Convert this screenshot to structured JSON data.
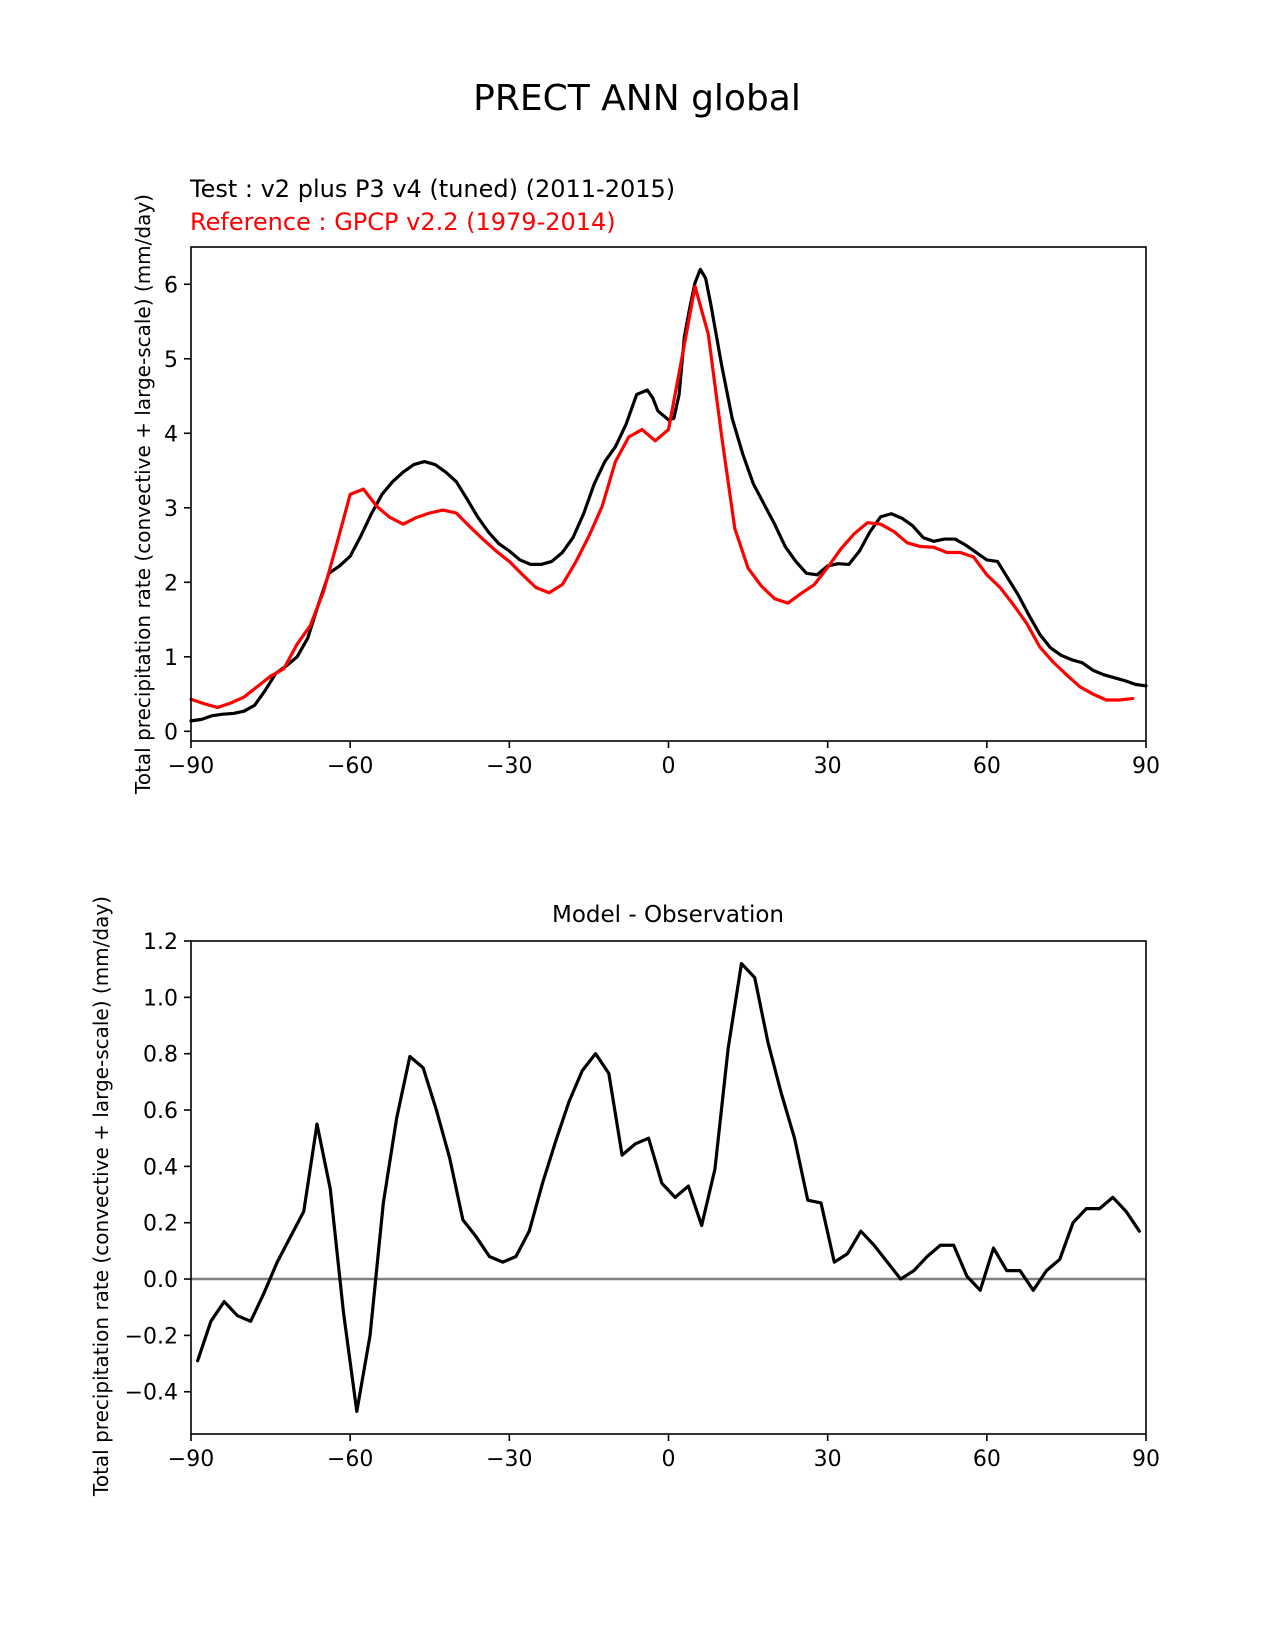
{
  "figure": {
    "title": "PRECT ANN global"
  },
  "chart_data": [
    {
      "type": "line",
      "test_label": "Test : v2 plus P3 v4 (tuned) (2011-2015)",
      "reference_label": "Reference : GPCP v2.2 (1979-2014)",
      "xlabel": "",
      "ylabel": "Total precipitation rate (convective + large-scale) (mm/day)",
      "xlim": [
        -90,
        90
      ],
      "ylim": [
        -0.13,
        6.5
      ],
      "xticks": [
        -90,
        -60,
        -30,
        0,
        30,
        60,
        90
      ],
      "xtick_labels": [
        "−90",
        "−60",
        "−30",
        "0",
        "30",
        "60",
        "90"
      ],
      "yticks": [
        0,
        1,
        2,
        3,
        4,
        5,
        6
      ],
      "ytick_labels": [
        "0",
        "1",
        "2",
        "3",
        "4",
        "5",
        "6"
      ],
      "grid": false,
      "series": [
        {
          "color": "#000000",
          "points": [
            [
              -90,
              0.14
            ],
            [
              -88,
              0.16
            ],
            [
              -86,
              0.21
            ],
            [
              -84,
              0.23
            ],
            [
              -82,
              0.24
            ],
            [
              -80,
              0.27
            ],
            [
              -78,
              0.35
            ],
            [
              -76,
              0.55
            ],
            [
              -74,
              0.78
            ],
            [
              -72,
              0.88
            ],
            [
              -70,
              1.0
            ],
            [
              -68,
              1.25
            ],
            [
              -66,
              1.7
            ],
            [
              -64,
              2.12
            ],
            [
              -62,
              2.22
            ],
            [
              -60,
              2.35
            ],
            [
              -58,
              2.62
            ],
            [
              -56,
              2.92
            ],
            [
              -54,
              3.18
            ],
            [
              -52,
              3.35
            ],
            [
              -50,
              3.48
            ],
            [
              -48,
              3.58
            ],
            [
              -46,
              3.62
            ],
            [
              -44,
              3.58
            ],
            [
              -42,
              3.48
            ],
            [
              -40,
              3.35
            ],
            [
              -38,
              3.12
            ],
            [
              -36,
              2.88
            ],
            [
              -34,
              2.68
            ],
            [
              -32,
              2.52
            ],
            [
              -30,
              2.42
            ],
            [
              -28,
              2.3
            ],
            [
              -26,
              2.24
            ],
            [
              -24,
              2.24
            ],
            [
              -22,
              2.28
            ],
            [
              -20,
              2.4
            ],
            [
              -18,
              2.6
            ],
            [
              -16,
              2.92
            ],
            [
              -14,
              3.32
            ],
            [
              -12,
              3.62
            ],
            [
              -10,
              3.82
            ],
            [
              -8,
              4.12
            ],
            [
              -6,
              4.52
            ],
            [
              -4,
              4.58
            ],
            [
              -3,
              4.48
            ],
            [
              -2,
              4.3
            ],
            [
              0,
              4.18
            ],
            [
              1,
              4.2
            ],
            [
              2,
              4.52
            ],
            [
              3,
              5.3
            ],
            [
              4,
              5.68
            ],
            [
              5,
              6.02
            ],
            [
              6,
              6.2
            ],
            [
              7,
              6.08
            ],
            [
              8,
              5.72
            ],
            [
              10,
              4.92
            ],
            [
              12,
              4.2
            ],
            [
              14,
              3.72
            ],
            [
              16,
              3.32
            ],
            [
              18,
              3.05
            ],
            [
              20,
              2.78
            ],
            [
              22,
              2.48
            ],
            [
              24,
              2.28
            ],
            [
              26,
              2.12
            ],
            [
              28,
              2.1
            ],
            [
              30,
              2.22
            ],
            [
              32,
              2.25
            ],
            [
              34,
              2.24
            ],
            [
              36,
              2.42
            ],
            [
              38,
              2.68
            ],
            [
              40,
              2.88
            ],
            [
              42,
              2.92
            ],
            [
              44,
              2.86
            ],
            [
              46,
              2.76
            ],
            [
              48,
              2.6
            ],
            [
              50,
              2.55
            ],
            [
              52,
              2.58
            ],
            [
              54,
              2.58
            ],
            [
              56,
              2.5
            ],
            [
              58,
              2.4
            ],
            [
              60,
              2.3
            ],
            [
              62,
              2.28
            ],
            [
              64,
              2.05
            ],
            [
              66,
              1.82
            ],
            [
              68,
              1.55
            ],
            [
              70,
              1.3
            ],
            [
              72,
              1.12
            ],
            [
              74,
              1.02
            ],
            [
              76,
              0.96
            ],
            [
              78,
              0.92
            ],
            [
              80,
              0.82
            ],
            [
              82,
              0.76
            ],
            [
              84,
              0.72
            ],
            [
              86,
              0.68
            ],
            [
              88,
              0.63
            ],
            [
              90,
              0.61
            ]
          ]
        },
        {
          "color": "#ff0000",
          "points": [
            [
              -90,
              0.43
            ],
            [
              -87.5,
              0.37
            ],
            [
              -85,
              0.32
            ],
            [
              -82.5,
              0.38
            ],
            [
              -80,
              0.46
            ],
            [
              -77.5,
              0.6
            ],
            [
              -75,
              0.74
            ],
            [
              -72.5,
              0.84
            ],
            [
              -70,
              1.17
            ],
            [
              -67.5,
              1.42
            ],
            [
              -65,
              1.88
            ],
            [
              -62.5,
              2.52
            ],
            [
              -60,
              3.18
            ],
            [
              -57.5,
              3.25
            ],
            [
              -55,
              3.02
            ],
            [
              -52.5,
              2.87
            ],
            [
              -50,
              2.78
            ],
            [
              -47.5,
              2.87
            ],
            [
              -45,
              2.93
            ],
            [
              -42.5,
              2.97
            ],
            [
              -40,
              2.93
            ],
            [
              -37.5,
              2.75
            ],
            [
              -35,
              2.58
            ],
            [
              -32.5,
              2.42
            ],
            [
              -30,
              2.28
            ],
            [
              -27.5,
              2.1
            ],
            [
              -25,
              1.93
            ],
            [
              -22.5,
              1.86
            ],
            [
              -20,
              1.97
            ],
            [
              -17.5,
              2.27
            ],
            [
              -15,
              2.62
            ],
            [
              -12.5,
              3.02
            ],
            [
              -10,
              3.62
            ],
            [
              -7.5,
              3.95
            ],
            [
              -5,
              4.05
            ],
            [
              -2.5,
              3.9
            ],
            [
              0,
              4.05
            ],
            [
              2.5,
              5.0
            ],
            [
              5,
              5.97
            ],
            [
              7.5,
              5.33
            ],
            [
              10,
              3.97
            ],
            [
              12.5,
              2.72
            ],
            [
              15,
              2.19
            ],
            [
              17.5,
              1.95
            ],
            [
              20,
              1.78
            ],
            [
              22.5,
              1.72
            ],
            [
              25,
              1.85
            ],
            [
              27.5,
              1.97
            ],
            [
              30,
              2.2
            ],
            [
              32.5,
              2.45
            ],
            [
              35,
              2.65
            ],
            [
              37.5,
              2.8
            ],
            [
              40,
              2.78
            ],
            [
              42.5,
              2.68
            ],
            [
              45,
              2.53
            ],
            [
              47.5,
              2.48
            ],
            [
              50,
              2.47
            ],
            [
              52.5,
              2.4
            ],
            [
              55,
              2.4
            ],
            [
              57.5,
              2.34
            ],
            [
              60,
              2.1
            ],
            [
              62.5,
              1.93
            ],
            [
              65,
              1.7
            ],
            [
              67.5,
              1.45
            ],
            [
              70,
              1.13
            ],
            [
              72.5,
              0.93
            ],
            [
              75,
              0.76
            ],
            [
              77.5,
              0.6
            ],
            [
              80,
              0.5
            ],
            [
              82.5,
              0.42
            ],
            [
              85,
              0.42
            ],
            [
              87.5,
              0.44
            ]
          ]
        }
      ]
    },
    {
      "type": "line",
      "title": "Model - Observation",
      "xlabel": "",
      "ylabel": "Total precipitation rate (convective + large-scale) (mm/day)",
      "xlim": [
        -90,
        90
      ],
      "ylim": [
        -0.55,
        1.2
      ],
      "xticks": [
        -90,
        -60,
        -30,
        0,
        30,
        60,
        90
      ],
      "xtick_labels": [
        "−90",
        "−60",
        "−30",
        "0",
        "30",
        "60",
        "90"
      ],
      "yticks": [
        -0.4,
        -0.2,
        0.0,
        0.2,
        0.4,
        0.6,
        0.8,
        1.0,
        1.2
      ],
      "ytick_labels": [
        "−0.4",
        "−0.2",
        "0.0",
        "0.2",
        "0.4",
        "0.6",
        "0.8",
        "1.0",
        "1.2"
      ],
      "zero_line_color": "#808080",
      "grid": false,
      "series": [
        {
          "color": "#000000",
          "points": [
            [
              -88.75,
              -0.29
            ],
            [
              -86.25,
              -0.15
            ],
            [
              -83.75,
              -0.08
            ],
            [
              -81.25,
              -0.13
            ],
            [
              -78.75,
              -0.15
            ],
            [
              -76.25,
              -0.05
            ],
            [
              -73.75,
              0.06
            ],
            [
              -71.25,
              0.15
            ],
            [
              -68.75,
              0.24
            ],
            [
              -66.25,
              0.55
            ],
            [
              -63.75,
              0.32
            ],
            [
              -61.25,
              -0.12
            ],
            [
              -58.75,
              -0.47
            ],
            [
              -56.25,
              -0.2
            ],
            [
              -53.75,
              0.27
            ],
            [
              -51.25,
              0.57
            ],
            [
              -48.75,
              0.79
            ],
            [
              -46.25,
              0.75
            ],
            [
              -43.75,
              0.6
            ],
            [
              -41.25,
              0.43
            ],
            [
              -38.75,
              0.21
            ],
            [
              -36.25,
              0.15
            ],
            [
              -33.75,
              0.08
            ],
            [
              -31.25,
              0.06
            ],
            [
              -28.75,
              0.08
            ],
            [
              -26.25,
              0.17
            ],
            [
              -23.75,
              0.34
            ],
            [
              -21.25,
              0.49
            ],
            [
              -18.75,
              0.63
            ],
            [
              -16.25,
              0.74
            ],
            [
              -13.75,
              0.8
            ],
            [
              -11.25,
              0.73
            ],
            [
              -8.75,
              0.44
            ],
            [
              -6.25,
              0.48
            ],
            [
              -3.75,
              0.5
            ],
            [
              -1.25,
              0.34
            ],
            [
              1.25,
              0.29
            ],
            [
              3.75,
              0.33
            ],
            [
              6.25,
              0.19
            ],
            [
              8.75,
              0.39
            ],
            [
              11.25,
              0.82
            ],
            [
              13.75,
              1.12
            ],
            [
              16.25,
              1.07
            ],
            [
              18.75,
              0.84
            ],
            [
              21.25,
              0.66
            ],
            [
              23.75,
              0.5
            ],
            [
              26.25,
              0.28
            ],
            [
              28.75,
              0.27
            ],
            [
              31.25,
              0.06
            ],
            [
              33.75,
              0.09
            ],
            [
              36.25,
              0.17
            ],
            [
              38.75,
              0.12
            ],
            [
              41.25,
              0.06
            ],
            [
              43.75,
              0.0
            ],
            [
              46.25,
              0.03
            ],
            [
              48.75,
              0.08
            ],
            [
              51.25,
              0.12
            ],
            [
              53.75,
              0.12
            ],
            [
              56.25,
              0.01
            ],
            [
              58.75,
              -0.04
            ],
            [
              61.25,
              0.11
            ],
            [
              63.75,
              0.03
            ],
            [
              66.25,
              0.03
            ],
            [
              68.75,
              -0.04
            ],
            [
              71.25,
              0.03
            ],
            [
              73.75,
              0.07
            ],
            [
              76.25,
              0.2
            ],
            [
              78.75,
              0.25
            ],
            [
              81.25,
              0.25
            ],
            [
              83.75,
              0.29
            ],
            [
              86.25,
              0.24
            ],
            [
              88.75,
              0.17
            ]
          ]
        }
      ]
    }
  ]
}
